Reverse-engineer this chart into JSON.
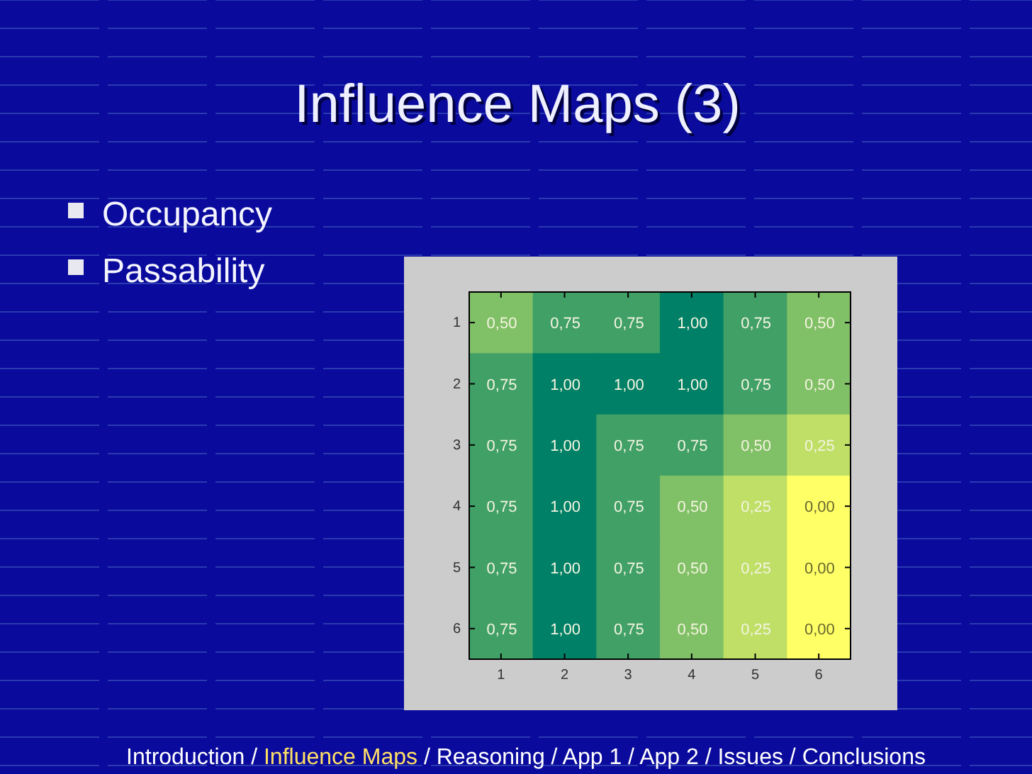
{
  "chart_data": {
    "type": "heatmap",
    "title": "Influence Maps (3)",
    "categories": [
      "1",
      "2",
      "3",
      "4",
      "5",
      "6"
    ],
    "y_categories": [
      "1",
      "2",
      "3",
      "4",
      "5",
      "6"
    ],
    "cells": [
      [
        0.5,
        0.75,
        0.75,
        1,
        0.75,
        0.5
      ],
      [
        0.75,
        1,
        1,
        1,
        0.75,
        0.5
      ],
      [
        0.75,
        1,
        0.75,
        0.75,
        0.5,
        0.25
      ],
      [
        0.75,
        1,
        0.75,
        0.5,
        0.25,
        0
      ],
      [
        0.75,
        1,
        0.75,
        0.5,
        0.25,
        0
      ],
      [
        0.75,
        1,
        0.75,
        0.5,
        0.25,
        0
      ]
    ],
    "cell_labels": [
      [
        "0,50",
        "0,75",
        "0,75",
        "1,00",
        "0,75",
        "0,50"
      ],
      [
        "0,75",
        "1,00",
        "1,00",
        "1,00",
        "0,75",
        "0,50"
      ],
      [
        "0,75",
        "1,00",
        "0,75",
        "0,75",
        "0,50",
        "0,25"
      ],
      [
        "0,75",
        "1,00",
        "0,75",
        "0,50",
        "0,25",
        "0,00"
      ],
      [
        "0,75",
        "1,00",
        "0,75",
        "0,50",
        "0,25",
        "0,00"
      ],
      [
        "0,75",
        "1,00",
        "0,75",
        "0,50",
        "0,25",
        "0,00"
      ]
    ],
    "annotations": [
      "Occupancy",
      "Passability",
      "Introduction / Influence Maps / Reasoning / App 1 / App 2 / Issues / Conclusions"
    ]
  }
}
